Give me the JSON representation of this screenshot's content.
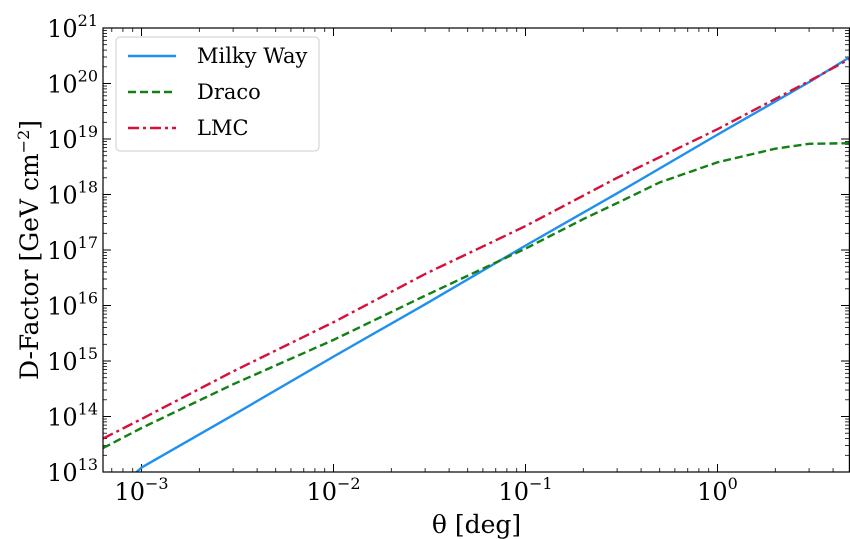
{
  "chart_data": {
    "type": "line",
    "xlabel": "θ [deg]",
    "ylabel": "D-Factor [GeV cm",
    "ylabel_sup": "−2",
    "ylabel_close": "]",
    "x_scale": "log",
    "y_scale": "log",
    "xlim": [
      0.00063,
      4.9
    ],
    "ylim": [
      10000000000000.0,
      1e+21
    ],
    "x_ticks": [
      {
        "value": 0.001,
        "base": "10",
        "exp": "−3"
      },
      {
        "value": 0.01,
        "base": "10",
        "exp": "−2"
      },
      {
        "value": 0.1,
        "base": "10",
        "exp": "−1"
      },
      {
        "value": 1,
        "base": "10",
        "exp": "0"
      }
    ],
    "y_ticks": [
      {
        "value": 10000000000000.0,
        "base": "10",
        "exp": "13"
      },
      {
        "value": 100000000000000.0,
        "base": "10",
        "exp": "14"
      },
      {
        "value": 1000000000000000.0,
        "base": "10",
        "exp": "15"
      },
      {
        "value": 1e+16,
        "base": "10",
        "exp": "16"
      },
      {
        "value": 1e+17,
        "base": "10",
        "exp": "17"
      },
      {
        "value": 1e+18,
        "base": "10",
        "exp": "18"
      },
      {
        "value": 1e+19,
        "base": "10",
        "exp": "19"
      },
      {
        "value": 1e+20,
        "base": "10",
        "exp": "20"
      },
      {
        "value": 1e+21,
        "base": "10",
        "exp": "21"
      }
    ],
    "grid": false,
    "legend_position": "top-left",
    "series": [
      {
        "name": "Milky Way",
        "color": "#1f8ff0",
        "style": "solid",
        "x": [
          0.00082,
          0.001,
          0.003,
          0.01,
          0.03,
          0.1,
          0.3,
          1.0,
          3.0,
          4.9
        ],
        "y": [
          6500000000000.0,
          12000000000000.0,
          106000000000000.0,
          1200000000000000.0,
          1.05e+16,
          1.2e+17,
          1.05e+18,
          1.2e+19,
          1.06e+20,
          3e+20
        ]
      },
      {
        "name": "Draco",
        "color": "#138013",
        "style": "dashed",
        "x": [
          0.00063,
          0.001,
          0.003,
          0.01,
          0.03,
          0.1,
          0.2,
          0.3,
          0.5,
          1.0,
          2.0,
          3.0,
          4.9
        ],
        "y": [
          27000000000000.0,
          62000000000000.0,
          380000000000000.0,
          2400000000000000.0,
          1.5e+16,
          1.06e+17,
          3.6e+17,
          7e+17,
          1.65e+18,
          3.8e+18,
          6.7e+18,
          8.2e+18,
          8.4e+18
        ]
      },
      {
        "name": "LMC",
        "color": "#d6103a",
        "style": "dashdot",
        "x": [
          0.00063,
          0.001,
          0.003,
          0.01,
          0.03,
          0.1,
          0.3,
          1.0,
          3.0,
          4.9
        ],
        "y": [
          40000000000000.0,
          90000000000000.0,
          650000000000000.0,
          5000000000000000.0,
          3.7e+16,
          2.7e+17,
          2e+18,
          1.5e+19,
          1.1e+20,
          2.8e+20
        ]
      }
    ]
  }
}
